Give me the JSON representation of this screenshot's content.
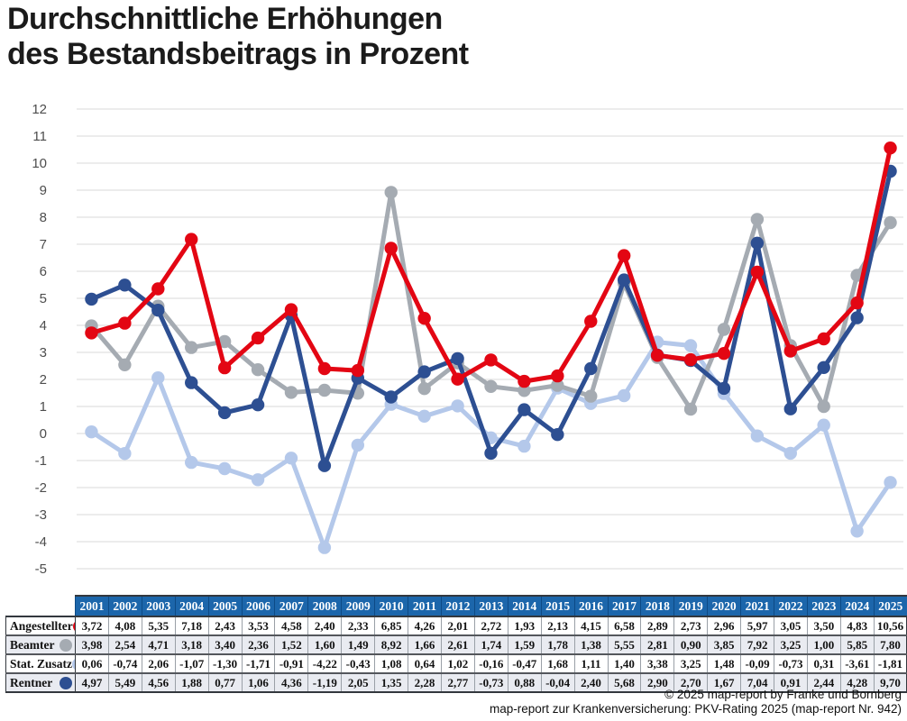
{
  "title": {
    "line1": "Durchschnittliche Erhöhungen",
    "line2": "des Bestandsbeitrags in Prozent"
  },
  "footer": {
    "line1": "© 2025 map-report by Franke und Bornberg",
    "line2": "map-report zur Krankenversicherung: PKV-Rating 2025 (map-report Nr. 942)"
  },
  "table_style": {
    "header_color": "#1c66ab",
    "alt_row_color": "#e9ebf1",
    "plain_row_color": "#ffffff"
  },
  "chart_data": {
    "type": "line",
    "title": "Durchschnittliche Erhöhungen des Bestandsbeitrags in Prozent",
    "xlabel": "",
    "ylabel": "",
    "ylim": [
      -5,
      12
    ],
    "ytick_step": 1,
    "grid": "horizontal",
    "gridline_color": "#d9d9d9",
    "legend_position": "table-row-headers",
    "categories": [
      "2001",
      "2002",
      "2003",
      "2004",
      "2005",
      "2006",
      "2007",
      "2008",
      "2009",
      "2010",
      "2011",
      "2012",
      "2013",
      "2014",
      "2015",
      "2016",
      "2017",
      "2018",
      "2019",
      "2020",
      "2021",
      "2022",
      "2023",
      "2024",
      "2025"
    ],
    "series": [
      {
        "name": "Angestellter",
        "color": "#e30613",
        "values": [
          3.72,
          4.08,
          5.35,
          7.18,
          2.43,
          3.53,
          4.58,
          2.4,
          2.33,
          6.85,
          4.26,
          2.01,
          2.72,
          1.93,
          2.13,
          4.15,
          6.58,
          2.89,
          2.73,
          2.96,
          5.97,
          3.05,
          3.5,
          4.83,
          10.56
        ]
      },
      {
        "name": "Beamter",
        "color": "#a5abb2",
        "values": [
          3.98,
          2.54,
          4.71,
          3.18,
          3.4,
          2.36,
          1.52,
          1.6,
          1.49,
          8.92,
          1.66,
          2.61,
          1.74,
          1.59,
          1.78,
          1.38,
          5.55,
          2.81,
          0.9,
          3.85,
          7.92,
          3.25,
          1.0,
          5.85,
          7.8
        ]
      },
      {
        "name": "Stat. Zusatz",
        "color": "#b4c8ea",
        "values": [
          0.06,
          -0.74,
          2.06,
          -1.07,
          -1.3,
          -1.71,
          -0.91,
          -4.22,
          -0.43,
          1.08,
          0.64,
          1.02,
          -0.16,
          -0.47,
          1.68,
          1.11,
          1.4,
          3.38,
          3.25,
          1.48,
          -0.09,
          -0.73,
          0.31,
          -3.61,
          -1.81
        ]
      },
      {
        "name": "Rentner",
        "color": "#2d4f92",
        "values": [
          4.97,
          5.49,
          4.56,
          1.88,
          0.77,
          1.06,
          4.36,
          -1.19,
          2.05,
          1.35,
          2.28,
          2.77,
          -0.73,
          0.88,
          -0.04,
          2.4,
          5.68,
          2.9,
          2.7,
          1.67,
          7.04,
          0.91,
          2.44,
          4.28,
          9.7
        ]
      }
    ]
  }
}
